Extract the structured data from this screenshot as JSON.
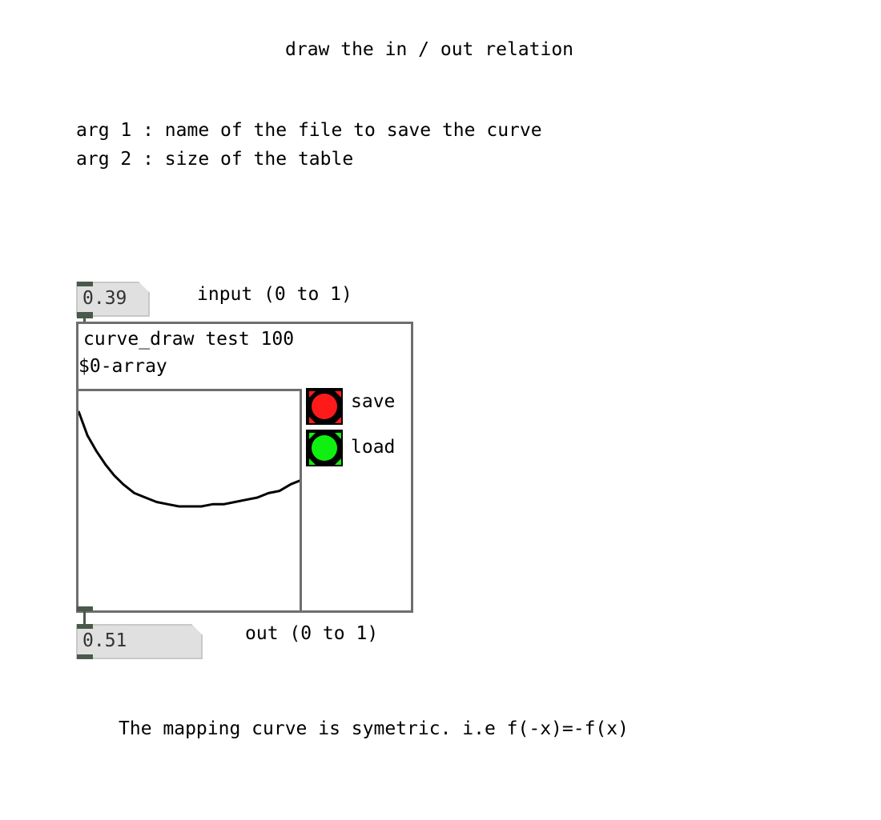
{
  "comments": {
    "title": "draw the in / out relation",
    "arg1": "arg 1 : name of the file to save the curve",
    "arg2": "arg 2 : size of the table",
    "input_label": "input (0 to 1)",
    "output_label": "out (0 to 1)",
    "footer": "The mapping curve is symetric. i.e f(-x)=-f(x)"
  },
  "input_number": {
    "value": "0.39"
  },
  "output_number": {
    "value": "0.51"
  },
  "object": {
    "text": "curve_draw test 100",
    "array_name": "$0-array"
  },
  "save_bang": {
    "label": "save",
    "color": "#ff1a1a"
  },
  "load_bang": {
    "label": "load",
    "color": "#10f010"
  },
  "curve": {
    "x_range": [
      0,
      1
    ],
    "y_range": [
      0,
      1
    ],
    "points": [
      [
        0.0,
        0.91
      ],
      [
        0.04,
        0.8
      ],
      [
        0.08,
        0.73
      ],
      [
        0.12,
        0.67
      ],
      [
        0.16,
        0.62
      ],
      [
        0.2,
        0.58
      ],
      [
        0.25,
        0.54
      ],
      [
        0.3,
        0.52
      ],
      [
        0.35,
        0.5
      ],
      [
        0.4,
        0.49
      ],
      [
        0.45,
        0.48
      ],
      [
        0.5,
        0.48
      ],
      [
        0.55,
        0.48
      ],
      [
        0.6,
        0.49
      ],
      [
        0.65,
        0.49
      ],
      [
        0.7,
        0.5
      ],
      [
        0.75,
        0.51
      ],
      [
        0.8,
        0.52
      ],
      [
        0.85,
        0.54
      ],
      [
        0.9,
        0.55
      ],
      [
        0.95,
        0.58
      ],
      [
        1.0,
        0.6
      ]
    ]
  }
}
